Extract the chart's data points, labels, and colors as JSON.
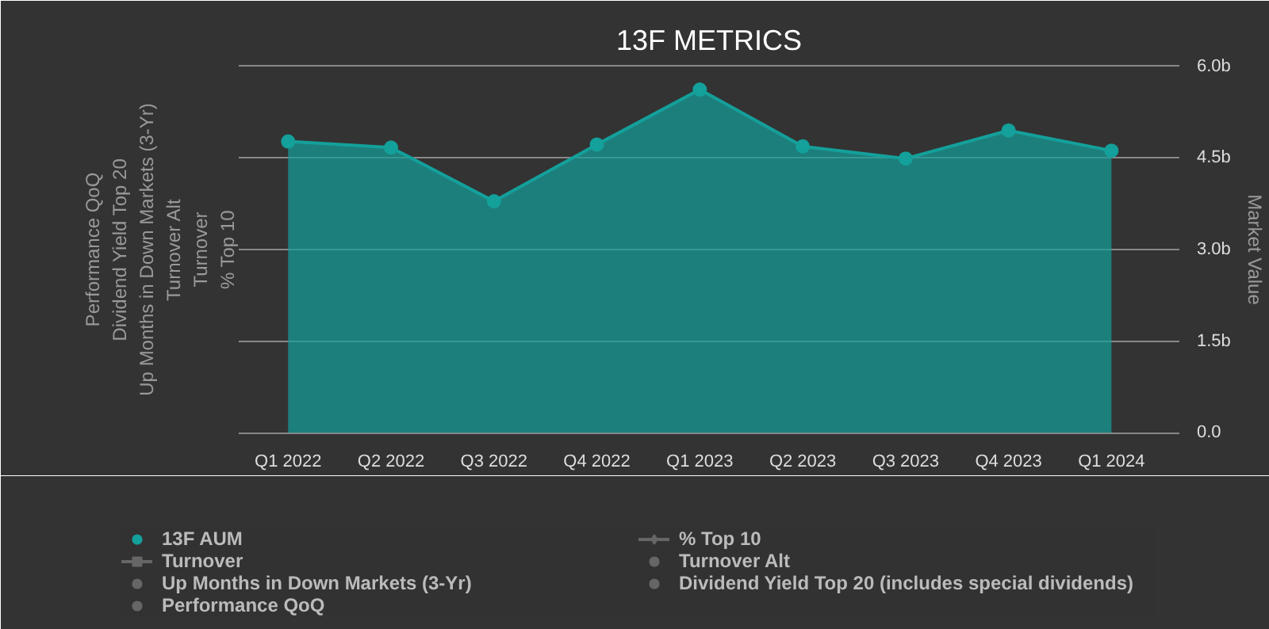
{
  "chart_data": {
    "type": "area",
    "title": "13F METRICS",
    "categories": [
      "Q1 2022",
      "Q2 2022",
      "Q3 2022",
      "Q4 2022",
      "Q1 2023",
      "Q2 2023",
      "Q3 2023",
      "Q4 2023",
      "Q1 2024"
    ],
    "series": [
      {
        "name": "13F AUM",
        "color": "#14a09b",
        "axis": "y2",
        "marker": "circle",
        "values": [
          4.77,
          4.67,
          3.79,
          4.72,
          5.62,
          4.69,
          4.49,
          4.95,
          4.62
        ]
      },
      {
        "name": "Turnover",
        "type": "line",
        "color": "#666666",
        "marker": "square",
        "values": [
          null,
          null,
          null,
          null,
          null,
          null,
          null,
          null,
          null
        ]
      },
      {
        "name": "Up Months in Down Markets (3-Yr)",
        "type": "scatter",
        "color": "#666666",
        "marker": "circle",
        "values": [
          null,
          null,
          null,
          null,
          null,
          null,
          null,
          null,
          null
        ]
      },
      {
        "name": "Performance QoQ",
        "type": "scatter",
        "color": "#666666",
        "marker": "circle",
        "values": [
          null,
          null,
          null,
          null,
          null,
          null,
          null,
          null,
          null
        ]
      },
      {
        "name": "% Top 10",
        "type": "line",
        "color": "#666666",
        "marker": "diamond",
        "values": [
          null,
          null,
          null,
          null,
          null,
          null,
          null,
          null,
          null
        ]
      },
      {
        "name": "Turnover Alt",
        "type": "scatter",
        "color": "#666666",
        "marker": "circle",
        "values": [
          null,
          null,
          null,
          null,
          null,
          null,
          null,
          null,
          null
        ]
      },
      {
        "name": "Dividend Yield Top 20 (includes special dividends)",
        "type": "scatter",
        "color": "#666666",
        "marker": "circle",
        "values": [
          null,
          null,
          null,
          null,
          null,
          null,
          null,
          null,
          null
        ]
      }
    ],
    "y2label": "Market Value",
    "y2lim": [
      0,
      6
    ],
    "y2ticks": [
      {
        "value": 0,
        "label": "0.0"
      },
      {
        "value": 1.5,
        "label": "1.5b"
      },
      {
        "value": 3,
        "label": "3.0b"
      },
      {
        "value": 4.5,
        "label": "4.5b"
      },
      {
        "value": 6,
        "label": "6.0b"
      }
    ],
    "annotations": [
      "% Top 10",
      "Turnover",
      "Turnover Alt",
      "Up Months in Down Markets (3-Yr)",
      "Dividend Yield Top 20",
      "Performance QoQ"
    ],
    "grid": "y",
    "legend": "bottom"
  }
}
